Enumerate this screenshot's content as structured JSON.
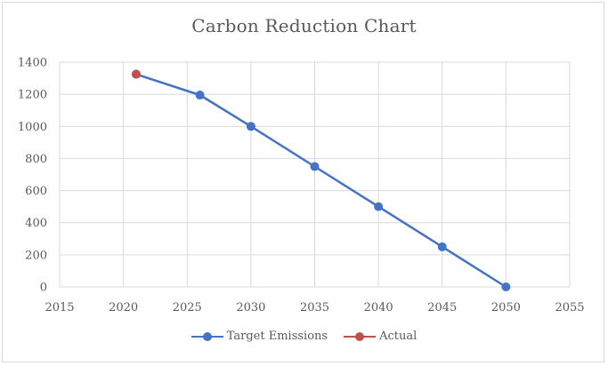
{
  "chart_data": {
    "type": "line",
    "title": "Carbon Reduction Chart",
    "xlabel": "",
    "ylabel": "",
    "xlim": [
      2015,
      2055
    ],
    "ylim": [
      0,
      1400
    ],
    "x_ticks": [
      2015,
      2020,
      2025,
      2030,
      2035,
      2040,
      2045,
      2050,
      2055
    ],
    "y_ticks": [
      0,
      200,
      400,
      600,
      800,
      1000,
      1200,
      1400
    ],
    "grid": true,
    "legend_position": "bottom",
    "series": [
      {
        "name": "Target Emissions",
        "color": "#4472c4",
        "marker": "circle",
        "x": [
          2021,
          2026,
          2030,
          2035,
          2040,
          2045,
          2050
        ],
        "y": [
          1325,
          1195,
          1000,
          750,
          500,
          250,
          0
        ]
      },
      {
        "name": "Actual",
        "color": "#c0504d",
        "marker": "circle",
        "x": [
          2021
        ],
        "y": [
          1325
        ]
      }
    ]
  }
}
